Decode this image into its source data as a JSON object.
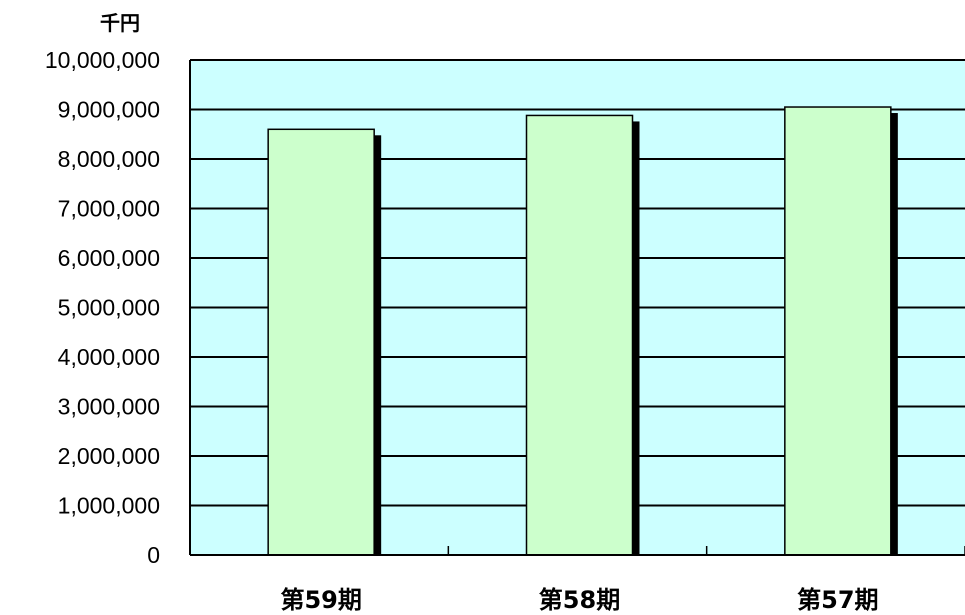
{
  "chart_data": {
    "type": "bar",
    "unit": "千円",
    "categories": [
      "第59期",
      "第58期",
      "第57期"
    ],
    "values": [
      8600000,
      8880000,
      9050000
    ],
    "ylim": [
      0,
      10000000
    ],
    "yticks": [
      "0",
      "1,000,000",
      "2,000,000",
      "3,000,000",
      "4,000,000",
      "5,000,000",
      "6,000,000",
      "7,000,000",
      "8,000,000",
      "9,000,000",
      "10,000,000"
    ],
    "grid": true,
    "legend": "none",
    "colors": {
      "plot_background": "#ccffff",
      "bar_fill": "#ccffcc",
      "bar_shadow": "#000000",
      "gridline": "#000000"
    }
  }
}
